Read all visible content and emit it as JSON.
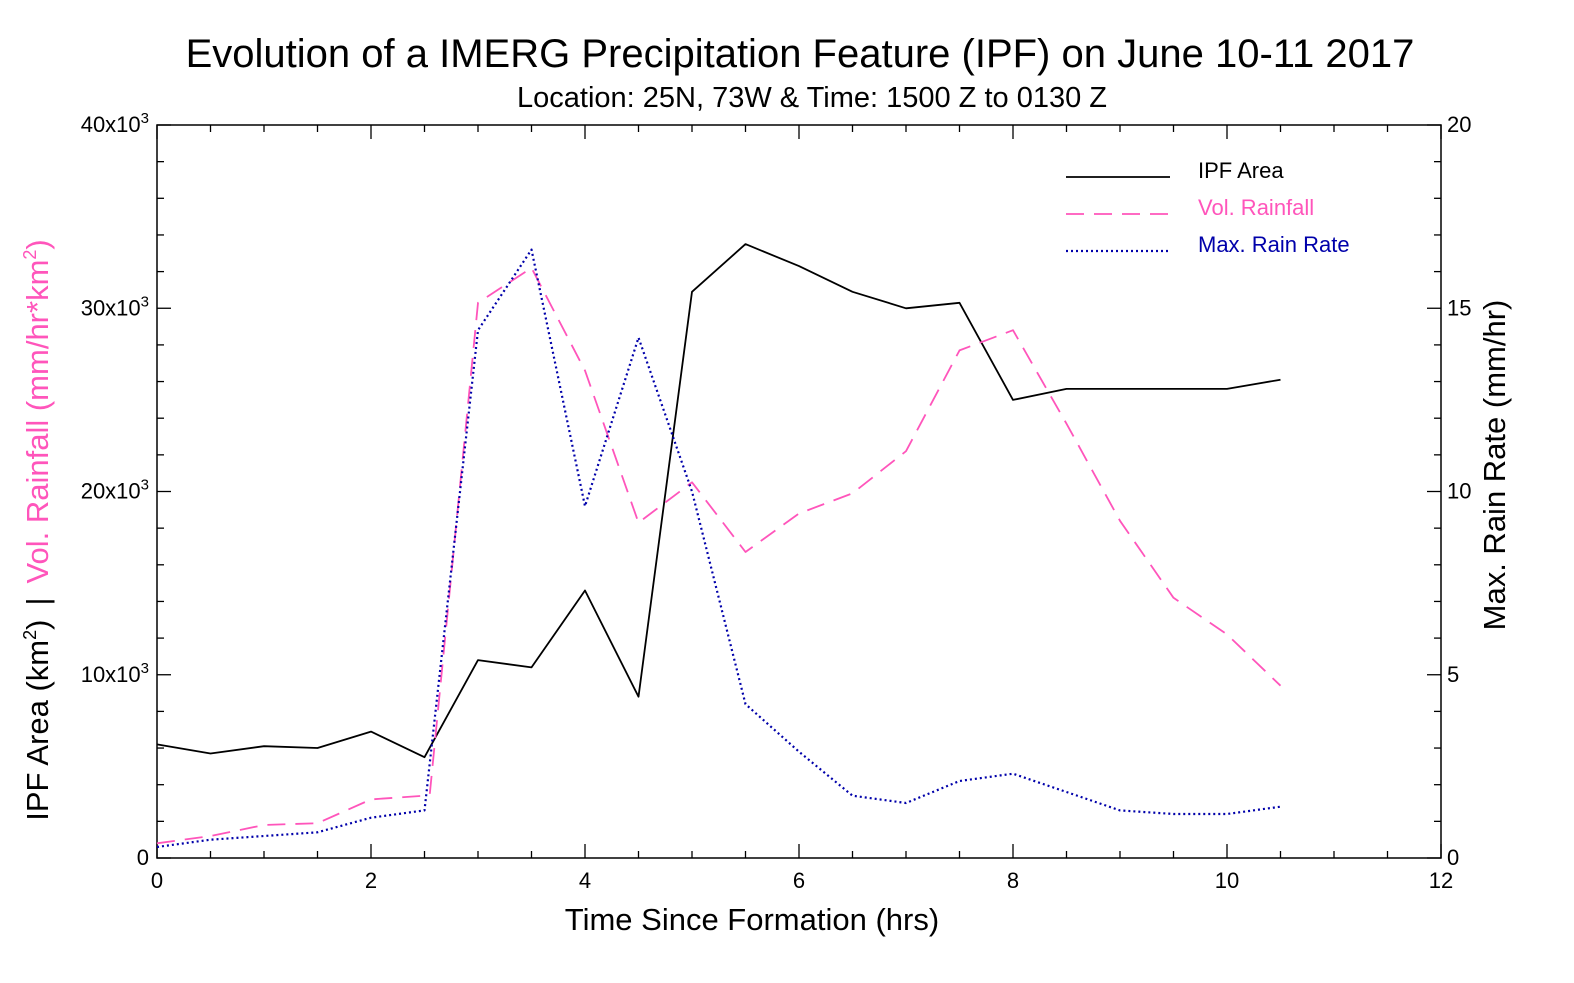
{
  "chart_data": {
    "type": "line",
    "title": "Evolution of a IMERG Precipitation Feature (IPF) on June 10-11 2017",
    "subtitle": "Location: 25N, 73W & Time: 1500 Z to 0130 Z",
    "xlabel": "Time Since Formation (hrs)",
    "ylabel_left": {
      "rainfall_part": "Vol. Rainfall (mm/hr*km",
      "rainfall_sup": "2",
      "rainfall_close": ")",
      "separator": "|",
      "area_part": "IPF Area (km",
      "area_sup": "2",
      "area_close": ")"
    },
    "ylabel_right": "Max. Rain Rate (mm/hr)",
    "xlim": [
      0,
      12
    ],
    "ylim_left": [
      0,
      40000
    ],
    "ylim_right": [
      0,
      20
    ],
    "x_ticks": [
      "0",
      "2",
      "4",
      "6",
      "8",
      "10",
      "12"
    ],
    "y_left_ticks": [
      {
        "base": "0",
        "exp": ""
      },
      {
        "base": "10x10",
        "exp": "3"
      },
      {
        "base": "20x10",
        "exp": "3"
      },
      {
        "base": "30x10",
        "exp": "3"
      },
      {
        "base": "40x10",
        "exp": "3"
      }
    ],
    "y_right_ticks": [
      "0",
      "5",
      "10",
      "15",
      "20"
    ],
    "legend_position": "top-right",
    "series": [
      {
        "name": "IPF Area",
        "axis": "left",
        "color": "#000000",
        "style": "solid",
        "x": [
          0,
          0.5,
          1,
          1.5,
          2,
          2.5,
          3,
          3.5,
          4,
          4.5,
          5,
          5.5,
          6,
          6.5,
          7,
          7.5,
          8,
          8.5,
          9,
          9.5,
          10,
          10.5
        ],
        "values": [
          6200,
          5700,
          6100,
          6000,
          6900,
          5500,
          10800,
          10400,
          14600,
          8800,
          30900,
          33500,
          32300,
          30900,
          30000,
          30300,
          25000,
          25600,
          25600,
          25600,
          25600,
          26100
        ]
      },
      {
        "name": "Vol. Rainfall",
        "axis": "left",
        "color": "#ff55bb",
        "style": "dashed",
        "x": [
          0,
          0.5,
          1,
          1.5,
          2,
          2.5,
          2.55,
          3,
          3.5,
          4,
          4.5,
          5,
          5.5,
          6,
          6.5,
          7,
          7.5,
          8,
          8.5,
          9,
          9.5,
          10,
          10.5
        ],
        "values": [
          800,
          1200,
          1800,
          1900,
          3200,
          3400,
          3500,
          30300,
          32200,
          26600,
          18300,
          20500,
          16700,
          18800,
          19900,
          22200,
          27700,
          28800,
          23700,
          18400,
          14200,
          12200,
          9400
        ]
      },
      {
        "name": "Max. Rain Rate",
        "axis": "right",
        "color": "#0000aa",
        "style": "dotted",
        "x": [
          0,
          0.5,
          1,
          1.5,
          2,
          2.5,
          3,
          3.5,
          4,
          4.5,
          5,
          5.5,
          6,
          6.5,
          7,
          7.5,
          8,
          8.5,
          9,
          9.5,
          10,
          10.5
        ],
        "values": [
          0.3,
          0.5,
          0.6,
          0.7,
          1.1,
          1.3,
          14.4,
          16.6,
          9.6,
          14.2,
          10.0,
          4.2,
          2.9,
          1.7,
          1.5,
          2.1,
          2.3,
          1.8,
          1.3,
          1.2,
          1.2,
          1.4
        ]
      }
    ]
  }
}
